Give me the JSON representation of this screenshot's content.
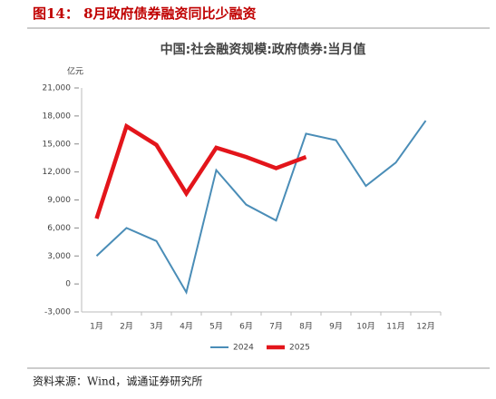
{
  "header": {
    "title": "图14：  8月政府债券融资同比少融资"
  },
  "chart_data": {
    "type": "line",
    "title": "中国:社会融资规模:政府债券:当月值",
    "y_unit": "亿元",
    "categories": [
      "1月",
      "2月",
      "3月",
      "4月",
      "5月",
      "6月",
      "7月",
      "8月",
      "9月",
      "10月",
      "11月",
      "12月"
    ],
    "series": [
      {
        "name": "2024",
        "color": "#4a8db7",
        "width": 2,
        "values": [
          3000,
          6000,
          4600,
          -900,
          12200,
          8500,
          6800,
          16100,
          15400,
          10500,
          13000,
          17500
        ]
      },
      {
        "name": "2025",
        "color": "#e3151b",
        "width": 4.5,
        "values": [
          7000,
          16900,
          14900,
          9700,
          14600,
          13600,
          12400,
          13600,
          null,
          null,
          null,
          null
        ]
      }
    ],
    "ylim": [
      -3000,
      21000
    ],
    "yticks": [
      {
        "value": -3000,
        "label": "-3,000"
      },
      0,
      {
        "value": 3000,
        "label": "3,000"
      },
      {
        "value": 6000,
        "label": "6,000"
      },
      {
        "value": 9000,
        "label": "9,000"
      },
      {
        "value": 12000,
        "label": "12,000"
      },
      {
        "value": 15000,
        "label": "15,000"
      },
      {
        "value": 18000,
        "label": "18,000"
      },
      {
        "value": 21000,
        "label": "21,000"
      }
    ],
    "grid": false,
    "legend": "bottom"
  },
  "footer": {
    "source": "资料来源：Wind，诚通证券研究所"
  }
}
